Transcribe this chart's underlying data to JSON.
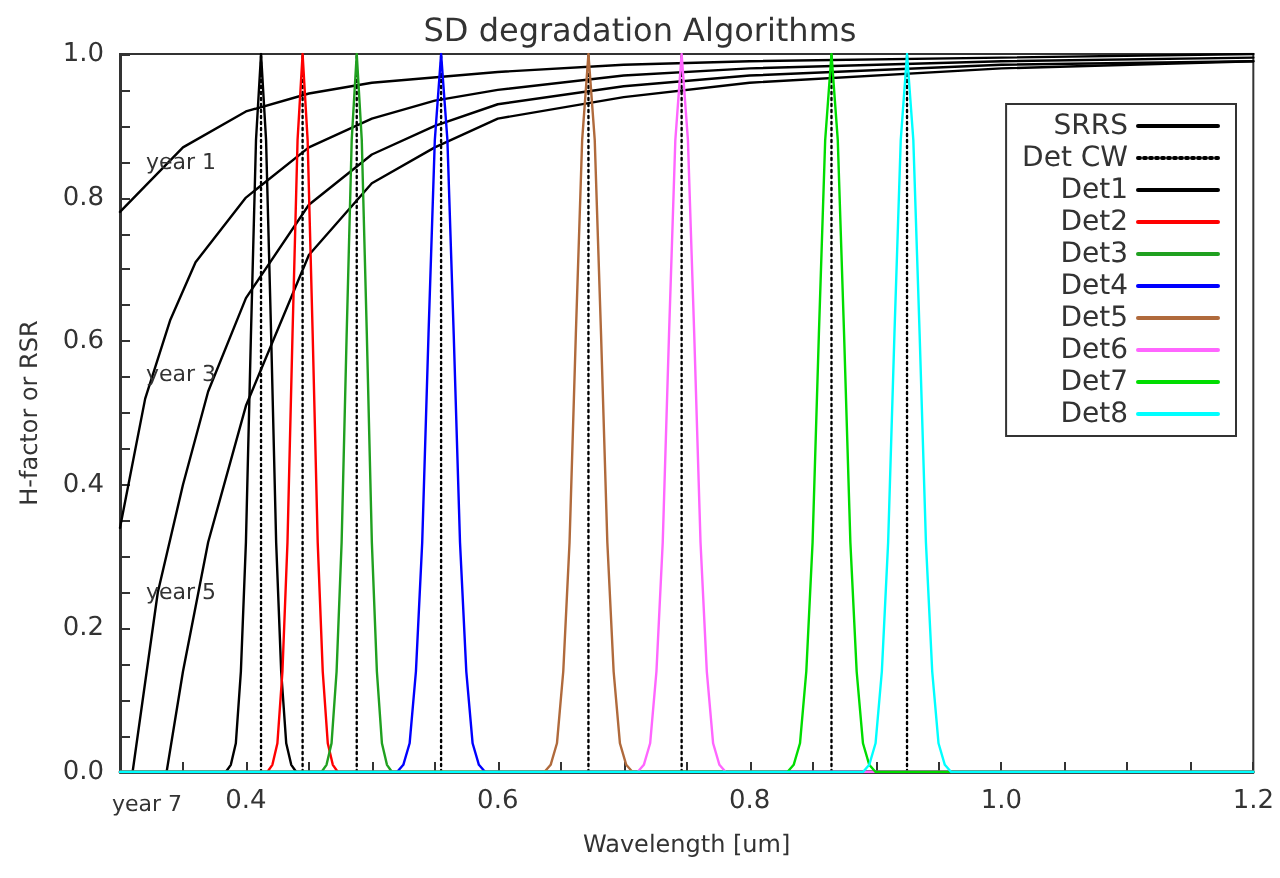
{
  "chart_data": {
    "type": "line",
    "title": "SD degradation Algorithms",
    "xlabel": "Wavelength [um]",
    "ylabel": "H-factor or RSR",
    "xlim": [
      0.3,
      1.2
    ],
    "ylim": [
      0,
      1
    ],
    "xticks": [
      {
        "value": 0.35,
        "label": null
      },
      0.4,
      {
        "value": 0.45,
        "label": null
      },
      {
        "value": 0.5,
        "label": null
      },
      {
        "value": 0.55,
        "label": null
      },
      0.6,
      {
        "value": 0.65,
        "label": null
      },
      {
        "value": 0.7,
        "label": null
      },
      {
        "value": 0.75,
        "label": null
      },
      0.8,
      {
        "value": 0.85,
        "label": null
      },
      {
        "value": 0.9,
        "label": null
      },
      {
        "value": 0.95,
        "label": null
      },
      {
        "value": 1.0,
        "label": "1.0"
      },
      {
        "value": 1.05,
        "label": null
      },
      {
        "value": 1.1,
        "label": null
      },
      {
        "value": 1.15,
        "label": null
      },
      1.2
    ],
    "yticks": [
      {
        "value": 0,
        "label": "0.0"
      },
      {
        "value": 0.05,
        "label": null
      },
      {
        "value": 0.1,
        "label": null
      },
      {
        "value": 0.15,
        "label": null
      },
      0.2,
      {
        "value": 0.25,
        "label": null
      },
      {
        "value": 0.3,
        "label": null
      },
      {
        "value": 0.35,
        "label": null
      },
      0.4,
      {
        "value": 0.45,
        "label": null
      },
      {
        "value": 0.5,
        "label": null
      },
      {
        "value": 0.55,
        "label": null
      },
      0.6,
      {
        "value": 0.65,
        "label": null
      },
      {
        "value": 0.7,
        "label": null
      },
      {
        "value": 0.75,
        "label": null
      },
      0.8,
      {
        "value": 0.85,
        "label": null
      },
      {
        "value": 0.9,
        "label": null
      },
      {
        "value": 0.95,
        "label": null
      },
      {
        "value": 1,
        "label": "1.0"
      }
    ],
    "grid": false,
    "legend": "top right",
    "marker": "none",
    "line_style": "solid",
    "annotations": [
      "year 1",
      "year 3",
      "year 5",
      "year 7"
    ],
    "series": [
      {
        "name": "SRRS",
        "color": "#000000",
        "x": [
          0.3,
          0.35,
          0.4,
          0.45,
          0.5,
          0.6,
          0.7,
          0.8,
          1.0,
          1.2
        ],
        "values": [
          0.78,
          0.87,
          0.92,
          0.945,
          0.96,
          0.975,
          0.985,
          0.99,
          0.995,
          1.0
        ]
      },
      {
        "color": "#000000",
        "x": [
          0.3,
          0.32,
          0.34,
          0.36,
          0.4,
          0.45,
          0.5,
          0.55,
          0.6,
          0.7,
          0.8,
          1.0,
          1.2
        ],
        "values": [
          0.34,
          0.52,
          0.63,
          0.71,
          0.8,
          0.87,
          0.91,
          0.935,
          0.95,
          0.97,
          0.98,
          0.99,
          0.995
        ]
      },
      {
        "color": "#000000",
        "x": [
          0.31,
          0.33,
          0.35,
          0.37,
          0.4,
          0.45,
          0.5,
          0.55,
          0.6,
          0.7,
          0.8,
          1.0,
          1.2
        ],
        "values": [
          0,
          0.25,
          0.4,
          0.53,
          0.66,
          0.79,
          0.86,
          0.9,
          0.93,
          0.955,
          0.97,
          0.985,
          0.99
        ]
      },
      {
        "color": "#000000",
        "x": [
          0.337,
          0.35,
          0.37,
          0.4,
          0.45,
          0.5,
          0.55,
          0.6,
          0.7,
          0.8,
          1.0,
          1.2
        ],
        "values": [
          0,
          0.14,
          0.32,
          0.51,
          0.72,
          0.82,
          0.87,
          0.91,
          0.94,
          0.96,
          0.98,
          0.99
        ]
      },
      {
        "name": "Det CW",
        "color": "#000000",
        "line_style": "dotted",
        "x": [
          0.412,
          0.412,
          null,
          0.445,
          0.445,
          null,
          0.488,
          0.488,
          null,
          0.555,
          0.555,
          null,
          0.672,
          0.672,
          null,
          0.746,
          0.746,
          null,
          0.865,
          0.865,
          null,
          0.925,
          0.925
        ],
        "values": [
          0,
          1,
          null,
          0,
          1,
          null,
          0,
          1,
          null,
          0,
          1,
          null,
          0,
          1,
          null,
          0,
          1,
          null,
          0,
          1,
          null,
          0,
          1
        ]
      },
      {
        "name": "Det1",
        "color": "#000000",
        "x": [
          0.3,
          0.384,
          0.388,
          0.392,
          0.396,
          0.4,
          0.404,
          0.408,
          0.412,
          0.416,
          0.42,
          0.424,
          0.428,
          0.432,
          0.436,
          0.44,
          1.2
        ],
        "values": [
          0,
          0,
          0.01,
          0.04,
          0.14,
          0.32,
          0.61,
          0.88,
          1,
          0.88,
          0.61,
          0.32,
          0.14,
          0.04,
          0.01,
          0,
          0
        ]
      },
      {
        "name": "Det2",
        "color": "#ff0000",
        "x": [
          0.3,
          0.417,
          0.421,
          0.425,
          0.429,
          0.433,
          0.437,
          0.441,
          0.445,
          0.449,
          0.453,
          0.457,
          0.461,
          0.465,
          0.469,
          0.473,
          1.2
        ],
        "values": [
          0,
          0,
          0.01,
          0.04,
          0.14,
          0.32,
          0.61,
          0.88,
          1,
          0.88,
          0.61,
          0.32,
          0.14,
          0.04,
          0.01,
          0,
          0
        ]
      },
      {
        "name": "Det3",
        "color": "#20a020",
        "x": [
          0.3,
          0.46,
          0.464,
          0.468,
          0.472,
          0.476,
          0.48,
          0.484,
          0.488,
          0.492,
          0.496,
          0.5,
          0.504,
          0.508,
          0.512,
          0.516,
          1.2
        ],
        "values": [
          0,
          0,
          0.01,
          0.04,
          0.14,
          0.32,
          0.61,
          0.88,
          1,
          0.88,
          0.61,
          0.32,
          0.14,
          0.04,
          0.01,
          0,
          0
        ]
      },
      {
        "name": "Det4",
        "color": "#0000ff",
        "x": [
          0.3,
          0.52,
          0.525,
          0.53,
          0.535,
          0.54,
          0.545,
          0.55,
          0.555,
          0.56,
          0.565,
          0.57,
          0.575,
          0.58,
          0.585,
          0.59,
          1.2
        ],
        "values": [
          0,
          0,
          0.01,
          0.04,
          0.14,
          0.32,
          0.61,
          0.88,
          1,
          0.88,
          0.61,
          0.32,
          0.14,
          0.04,
          0.01,
          0,
          0
        ]
      },
      {
        "name": "Det5",
        "color": "#b06a3c",
        "x": [
          0.3,
          0.637,
          0.642,
          0.647,
          0.652,
          0.657,
          0.662,
          0.667,
          0.672,
          0.677,
          0.682,
          0.687,
          0.692,
          0.697,
          0.702,
          0.707,
          1.2
        ],
        "values": [
          0,
          0,
          0.01,
          0.04,
          0.14,
          0.32,
          0.61,
          0.88,
          1,
          0.88,
          0.61,
          0.32,
          0.14,
          0.04,
          0.01,
          0,
          0
        ]
      },
      {
        "name": "Det6",
        "color": "#ff66ff",
        "x": [
          0.3,
          0.711,
          0.716,
          0.721,
          0.726,
          0.731,
          0.736,
          0.741,
          0.746,
          0.751,
          0.756,
          0.761,
          0.766,
          0.771,
          0.776,
          0.781,
          1.2
        ],
        "values": [
          0,
          0,
          0.01,
          0.04,
          0.14,
          0.32,
          0.61,
          0.88,
          1,
          0.88,
          0.61,
          0.32,
          0.14,
          0.04,
          0.01,
          0,
          0
        ]
      },
      {
        "name": "Det7",
        "color": "#00dd00",
        "x": [
          0.3,
          0.83,
          0.835,
          0.84,
          0.845,
          0.85,
          0.855,
          0.86,
          0.865,
          0.87,
          0.875,
          0.88,
          0.885,
          0.89,
          0.895,
          0.9,
          1.2
        ],
        "values": [
          0,
          0,
          0.01,
          0.04,
          0.14,
          0.32,
          0.61,
          0.88,
          1,
          0.88,
          0.61,
          0.32,
          0.14,
          0.04,
          0.01,
          0,
          0
        ]
      },
      {
        "name": "Det8",
        "color": "#00ffff",
        "x": [
          0.3,
          0.89,
          0.895,
          0.9,
          0.905,
          0.91,
          0.915,
          0.92,
          0.925,
          0.93,
          0.935,
          0.94,
          0.945,
          0.95,
          0.955,
          0.96,
          1.2
        ],
        "values": [
          0,
          0,
          0.01,
          0.04,
          0.14,
          0.32,
          0.61,
          0.88,
          1,
          0.88,
          0.61,
          0.32,
          0.14,
          0.04,
          0.01,
          0,
          0
        ]
      }
    ]
  }
}
